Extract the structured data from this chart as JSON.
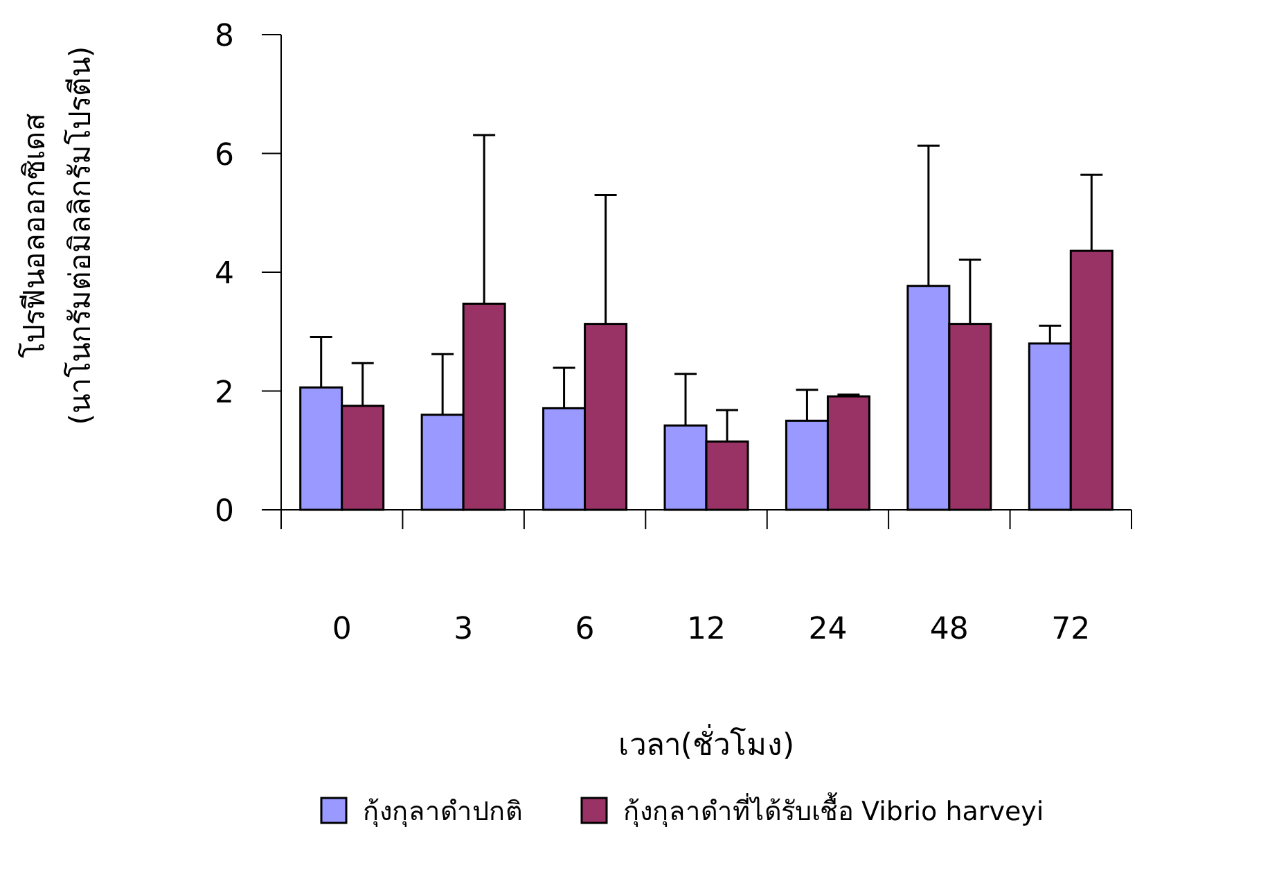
{
  "chart_data": {
    "type": "bar",
    "xlabel": "เวลา(ชั่วโมง)",
    "ylabel": "โปรฟีนอลออกซิเดส\n(นาโนกรัมต่อมิลลิกรัมโปรตีน)",
    "categories": [
      "0",
      "3",
      "6",
      "12",
      "24",
      "48",
      "72"
    ],
    "series": [
      {
        "name": "กุ้งกุลาดำปกติ",
        "color": "#9999ff",
        "values": [
          2.06,
          1.6,
          1.71,
          1.42,
          1.5,
          3.77,
          2.8
        ],
        "errors": [
          [
            2.06,
            2.91
          ],
          [
            1.6,
            2.62
          ],
          [
            1.71,
            2.39
          ],
          [
            1.42,
            2.29
          ],
          [
            1.5,
            2.02
          ],
          [
            3.77,
            6.13
          ],
          [
            2.8,
            3.1
          ]
        ]
      },
      {
        "name": "กุ้งกุลาดำที่ได้รับเชื้อ Vibrio harveyi",
        "color": "#993366",
        "values": [
          1.75,
          3.47,
          3.13,
          1.15,
          1.91,
          3.13,
          4.36
        ],
        "errors": [
          [
            1.75,
            2.47
          ],
          [
            3.47,
            6.31
          ],
          [
            3.13,
            5.3
          ],
          [
            1.15,
            1.68
          ],
          [
            1.91,
            1.94
          ],
          [
            3.13,
            4.21
          ],
          [
            4.36,
            5.64
          ]
        ]
      }
    ],
    "ylim": [
      0,
      8
    ],
    "yticks": [
      0,
      2,
      4,
      6,
      8
    ],
    "grid": false,
    "legend": "bottom"
  }
}
